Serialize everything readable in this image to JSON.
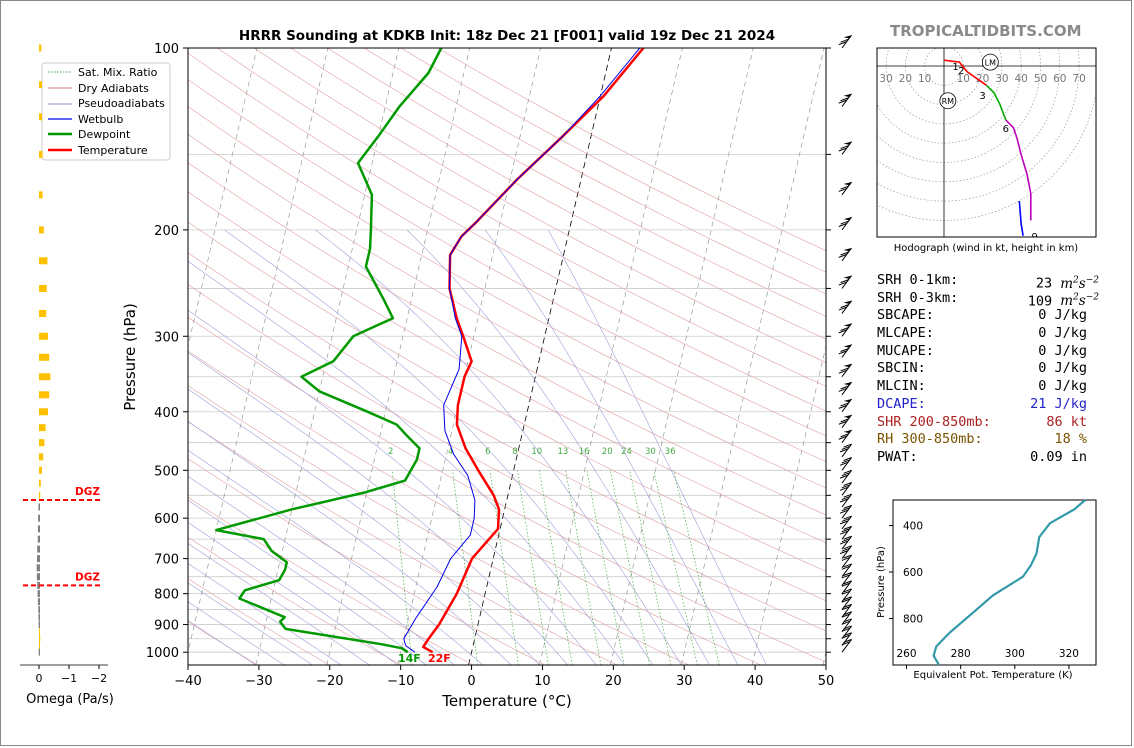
{
  "brand": "TROPICALTIDBITS.COM",
  "chart_data": [
    {
      "type": "line",
      "title": "HRRR Sounding at KDKB Init: 18z Dec 21 [F001] valid 19z Dec 21 2024",
      "xlabel": "Temperature (°C)",
      "ylabel": "Pressure (hPa)",
      "xlim": [
        -40,
        50
      ],
      "ylim": [
        1050,
        100
      ],
      "y_scale": "log",
      "x_ticks": [
        -40,
        -30,
        -20,
        -10,
        0,
        10,
        20,
        30,
        40,
        50
      ],
      "y_ticks": [
        100,
        200,
        300,
        400,
        500,
        600,
        700,
        800,
        900,
        1000
      ],
      "legend_position": "top-left",
      "legend": [
        "Sat. Mix. Ratio",
        "Dry Adiabats",
        "Pseudoadiabats",
        "Wetbulb",
        "Dewpoint",
        "Temperature"
      ],
      "mixing_ratio_labels": [
        "2",
        "4",
        "6",
        "8",
        "10",
        "13",
        "16",
        "20",
        "24",
        "30",
        "36"
      ],
      "surface_labels": {
        "dewpoint": "14F",
        "temperature": "22F"
      },
      "series": [
        {
          "name": "Temperature",
          "color": "#ff0000",
          "points": [
            [
              -5.5,
              1000
            ],
            [
              -7,
              980
            ],
            [
              -6.5,
              950
            ],
            [
              -5.5,
              900
            ],
            [
              -4,
              800
            ],
            [
              -3,
              700
            ],
            [
              -0.3,
              625
            ],
            [
              -0.8,
              580
            ],
            [
              -2,
              550
            ],
            [
              -5,
              500
            ],
            [
              -7.5,
              460
            ],
            [
              -9.5,
              420
            ],
            [
              -10,
              390
            ],
            [
              -10,
              350
            ],
            [
              -9.5,
              330
            ],
            [
              -11.5,
              300
            ],
            [
              -13,
              280
            ],
            [
              -15,
              250
            ],
            [
              -16,
              220
            ],
            [
              -15,
              205
            ],
            [
              -13.5,
              195
            ],
            [
              -9,
              165
            ],
            [
              -4,
              140
            ],
            [
              0.5,
              120
            ],
            [
              4.5,
              100
            ]
          ]
        },
        {
          "name": "Wetbulb",
          "color": "#0000ee",
          "points": [
            [
              -8,
              1000
            ],
            [
              -9.5,
              975
            ],
            [
              -10,
              950
            ],
            [
              -9,
              880
            ],
            [
              -7,
              780
            ],
            [
              -6,
              700
            ],
            [
              -4,
              640
            ],
            [
              -4,
              600
            ],
            [
              -4.5,
              560
            ],
            [
              -6.3,
              510
            ],
            [
              -9,
              470
            ],
            [
              -11,
              430
            ],
            [
              -12,
              390
            ],
            [
              -11,
              340
            ],
            [
              -11.7,
              300
            ],
            [
              -13.2,
              280
            ],
            [
              -15,
              250
            ],
            [
              -16,
              220
            ],
            [
              -15,
              205
            ],
            [
              -13.5,
              195
            ],
            [
              -9,
              165
            ],
            [
              -4,
              140
            ],
            [
              0,
              120
            ],
            [
              4,
              100
            ]
          ]
        },
        {
          "name": "Dewpoint",
          "color": "#009900",
          "points": [
            [
              -9,
              1000
            ],
            [
              -10,
              985
            ],
            [
              -13,
              970
            ],
            [
              -27,
              915
            ],
            [
              -28,
              890
            ],
            [
              -27.5,
              875
            ],
            [
              -34.5,
              815
            ],
            [
              -34,
              790
            ],
            [
              -29.5,
              760
            ],
            [
              -29,
              730
            ],
            [
              -29,
              710
            ],
            [
              -31.5,
              680
            ],
            [
              -33,
              650
            ],
            [
              -40,
              628
            ],
            [
              -30,
              580
            ],
            [
              -20.5,
              545
            ],
            [
              -15,
              520
            ],
            [
              -14,
              480
            ],
            [
              -14,
              460
            ],
            [
              -16,
              440
            ],
            [
              -18,
              420
            ],
            [
              -22.5,
              400
            ],
            [
              -30,
              370
            ],
            [
              -33,
              350
            ],
            [
              -29,
              330
            ],
            [
              -27,
              300
            ],
            [
              -22,
              280
            ],
            [
              -24,
              260
            ],
            [
              -27.5,
              230
            ],
            [
              -27.5,
              215
            ],
            [
              -28,
              200
            ],
            [
              -29,
              175
            ],
            [
              -32,
              155
            ],
            [
              -30,
              140
            ],
            [
              -28,
              125
            ],
            [
              -25,
              110
            ],
            [
              -24,
              100
            ]
          ]
        }
      ]
    },
    {
      "type": "bar",
      "title": "",
      "xlabel": "Omega (Pa/s)",
      "x_ticks": [
        "0",
        "−1",
        "−2"
      ],
      "dgz_label": "DGZ",
      "dgz_pressures_hpa": [
        560,
        775
      ],
      "upward_color": "#ffc000",
      "downward_color": "#808080",
      "levels_hpa": [
        100,
        115,
        130,
        150,
        175,
        200,
        225,
        250,
        275,
        300,
        325,
        350,
        375,
        400,
        425,
        450,
        475,
        500,
        525,
        550,
        575,
        600,
        625,
        650,
        675,
        700,
        725,
        750,
        775,
        800,
        825,
        850,
        875,
        900,
        925,
        950,
        975,
        1000
      ],
      "values": [
        -0.04,
        -0.05,
        -0.05,
        -0.06,
        -0.06,
        -0.08,
        -0.14,
        -0.13,
        -0.12,
        -0.15,
        -0.17,
        -0.19,
        -0.17,
        -0.15,
        -0.11,
        -0.09,
        -0.07,
        -0.05,
        -0.03,
        -0.02,
        0.03,
        0.05,
        0.06,
        0.07,
        0.1,
        0.11,
        0.13,
        0.12,
        0.1,
        0.08,
        0.06,
        0.04,
        0.03,
        0.02,
        -0.01,
        -0.02,
        -0.01,
        0
      ]
    },
    {
      "type": "line",
      "title": "Hodograph (wind in kt, height in km)",
      "ring_labels": [
        "30",
        "20",
        "10",
        "10",
        "20",
        "30",
        "40",
        "50",
        "60",
        "70"
      ],
      "markers": [
        "LM",
        "RM"
      ],
      "height_labels": [
        "1",
        "2",
        "3",
        "6",
        "9"
      ],
      "segments": [
        {
          "color": "#ff0000",
          "points": [
            [
              0,
              3
            ],
            [
              8,
              2
            ],
            [
              12,
              -3
            ],
            [
              22,
              -10
            ]
          ]
        },
        {
          "color": "#00aa00",
          "points": [
            [
              22,
              -10
            ],
            [
              26,
              -14
            ],
            [
              29,
              -20
            ],
            [
              32,
              -28
            ]
          ]
        },
        {
          "color": "#bb00bb",
          "points": [
            [
              32,
              -28
            ],
            [
              36,
              -32
            ],
            [
              38,
              -38
            ],
            [
              40,
              -46
            ],
            [
              43,
              -56
            ],
            [
              45,
              -66
            ],
            [
              45,
              -80
            ]
          ]
        },
        {
          "color": "#0000ff",
          "points": [
            [
              39,
              -70
            ],
            [
              40,
              -82
            ],
            [
              41,
              -88
            ]
          ]
        }
      ]
    },
    {
      "type": "line",
      "title": "",
      "xlabel": "Equivalent Pot. Temperature (K)",
      "ylabel": "Pressure (hPa)",
      "xlim": [
        255,
        330
      ],
      "ylim": [
        1000,
        290
      ],
      "x_ticks": [
        260,
        280,
        300,
        320
      ],
      "y_ticks": [
        400,
        600,
        800
      ],
      "series": [
        {
          "name": "",
          "color": "#3399aa",
          "points": [
            [
              272,
              1000
            ],
            [
              270,
              960
            ],
            [
              271,
              920
            ],
            [
              276,
              860
            ],
            [
              284,
              780
            ],
            [
              292,
              700
            ],
            [
              303,
              620
            ],
            [
              306,
              570
            ],
            [
              308,
              520
            ],
            [
              309,
              450
            ],
            [
              313,
              390
            ],
            [
              322,
              330
            ],
            [
              326,
              290
            ]
          ]
        }
      ]
    }
  ],
  "stats": [
    {
      "label": "SRH 0-1km:",
      "value": "23",
      "unit": "m2s-2",
      "color": "#000000"
    },
    {
      "label": "SRH 0-3km:",
      "value": "109",
      "unit": "m2s-2",
      "color": "#000000"
    },
    {
      "label": "SBCAPE:",
      "value": "0 J/kg",
      "color": "#000000"
    },
    {
      "label": "MLCAPE:",
      "value": "0 J/kg",
      "color": "#000000"
    },
    {
      "label": "MUCAPE:",
      "value": "0 J/kg",
      "color": "#000000"
    },
    {
      "label": "SBCIN:",
      "value": "0 J/kg",
      "color": "#000000"
    },
    {
      "label": "MLCIN:",
      "value": "0 J/kg",
      "color": "#000000"
    },
    {
      "label": "DCAPE:",
      "value": "21 J/kg",
      "color": "#2222cc"
    },
    {
      "label": "SHR 200-850mb:",
      "value": "86 kt",
      "color": "#aa2222"
    },
    {
      "label": "RH 300-850mb:",
      "value": "18 %",
      "color": "#7a5500"
    },
    {
      "label": "PWAT:",
      "value": "0.09 in",
      "color": "#000000"
    }
  ]
}
